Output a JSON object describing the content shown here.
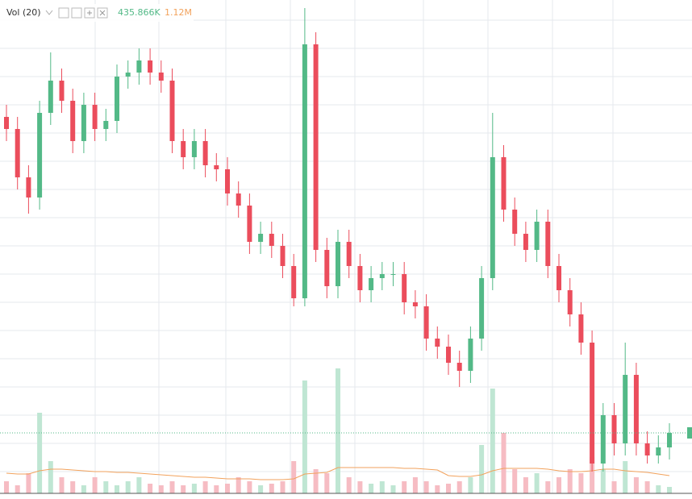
{
  "chart_data": {
    "type": "candlestick",
    "legend": {
      "label": "Vol (20)",
      "volume": "435.866K",
      "ma": "1.12M"
    },
    "up_color": "#53b987",
    "down_color": "#eb4d5c",
    "volume_up_color": "#bfe6d3",
    "volume_down_color": "#f6bcc3",
    "ma_color": "#f2a25c",
    "ylim": [
      20,
      620
    ],
    "vlim": [
      0,
      160
    ],
    "open": [
      475,
      460,
      400,
      375,
      480,
      520,
      495,
      445,
      490,
      460,
      470,
      525,
      530,
      545,
      530,
      520,
      445,
      425,
      445,
      415,
      410,
      380,
      365,
      320,
      330,
      315,
      290,
      250,
      565,
      310,
      265,
      320,
      290,
      260,
      275,
      280,
      280,
      245,
      240,
      200,
      190,
      170,
      160,
      200,
      275,
      425,
      360,
      330,
      310,
      345,
      290,
      260,
      230,
      195,
      45,
      105,
      70,
      155,
      70,
      55,
      65
    ],
    "close": [
      460,
      400,
      375,
      480,
      520,
      495,
      445,
      490,
      460,
      470,
      525,
      530,
      545,
      530,
      520,
      445,
      425,
      445,
      415,
      410,
      380,
      365,
      320,
      330,
      315,
      290,
      250,
      565,
      310,
      265,
      320,
      290,
      260,
      275,
      280,
      280,
      245,
      240,
      200,
      190,
      170,
      160,
      200,
      275,
      425,
      360,
      330,
      310,
      345,
      290,
      260,
      230,
      195,
      45,
      105,
      70,
      155,
      70,
      55,
      65,
      83
    ],
    "high": [
      490,
      475,
      415,
      495,
      555,
      535,
      510,
      505,
      505,
      485,
      540,
      545,
      560,
      560,
      545,
      535,
      460,
      460,
      460,
      430,
      425,
      395,
      380,
      345,
      345,
      330,
      305,
      610,
      580,
      325,
      335,
      335,
      305,
      290,
      295,
      295,
      295,
      260,
      255,
      215,
      205,
      185,
      215,
      290,
      480,
      440,
      375,
      345,
      360,
      360,
      305,
      275,
      245,
      210,
      120,
      120,
      195,
      170,
      85,
      80,
      95
    ],
    "low": [
      445,
      385,
      355,
      360,
      465,
      480,
      430,
      430,
      445,
      445,
      455,
      510,
      515,
      515,
      505,
      430,
      410,
      410,
      400,
      395,
      365,
      350,
      305,
      305,
      300,
      275,
      240,
      240,
      295,
      250,
      250,
      275,
      245,
      245,
      260,
      265,
      230,
      225,
      185,
      175,
      155,
      140,
      145,
      185,
      260,
      345,
      315,
      295,
      295,
      275,
      245,
      215,
      180,
      35,
      35,
      55,
      55,
      55,
      45,
      45,
      50
    ],
    "volume": [
      15,
      10,
      25,
      100,
      40,
      20,
      15,
      10,
      20,
      15,
      10,
      15,
      20,
      12,
      10,
      15,
      10,
      12,
      15,
      10,
      12,
      20,
      15,
      10,
      12,
      15,
      40,
      140,
      30,
      25,
      155,
      20,
      15,
      12,
      15,
      10,
      15,
      20,
      15,
      10,
      12,
      15,
      20,
      60,
      130,
      75,
      30,
      20,
      25,
      15,
      20,
      30,
      25,
      45,
      30,
      15,
      40,
      20,
      15,
      10,
      8
    ],
    "volume_ma": [
      25,
      24,
      24,
      28,
      30,
      30,
      29,
      28,
      27,
      27,
      26,
      26,
      25,
      24,
      23,
      22,
      21,
      20,
      20,
      19,
      18,
      18,
      18,
      17,
      17,
      17,
      18,
      24,
      25,
      26,
      32,
      32,
      32,
      32,
      32,
      32,
      31,
      31,
      30,
      29,
      22,
      21,
      21,
      23,
      28,
      31,
      31,
      31,
      31,
      30,
      28,
      27,
      27,
      28,
      30,
      30,
      28,
      27,
      26,
      24,
      22
    ]
  }
}
